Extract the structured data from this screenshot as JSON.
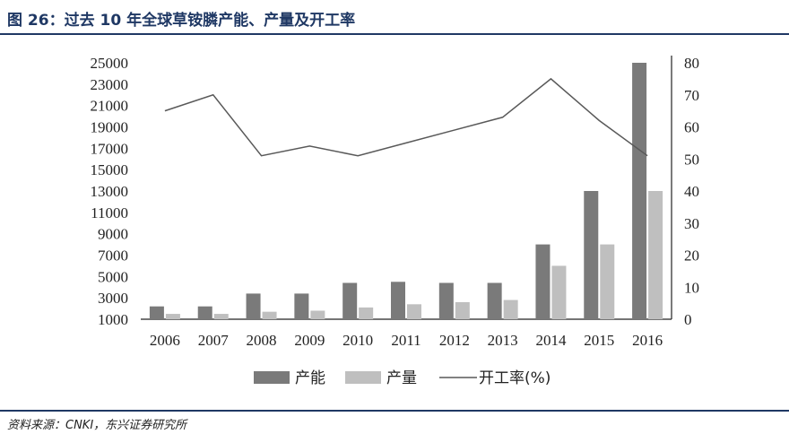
{
  "title": "图 26：过去 10 年全球草铵膦产能、产量及开工率",
  "source": "资料来源：CNKI，东兴证券研究所",
  "colors": {
    "accent": "#1f3864",
    "capacity_bar": "#7a7a7a",
    "output_bar": "#bfbfbf",
    "rate_line": "#595959"
  },
  "chart_data": {
    "type": "bar",
    "categories": [
      "2006",
      "2007",
      "2008",
      "2009",
      "2010",
      "2011",
      "2012",
      "2013",
      "2014",
      "2015",
      "2016"
    ],
    "series": [
      {
        "name": "产能",
        "type": "bar",
        "axis": "left",
        "values": [
          2200,
          2200,
          3400,
          3400,
          4400,
          4500,
          4400,
          4400,
          8000,
          13000,
          25000
        ]
      },
      {
        "name": "产量",
        "type": "bar",
        "axis": "left",
        "values": [
          1500,
          1500,
          1700,
          1800,
          2100,
          2400,
          2600,
          2800,
          6000,
          8000,
          13000
        ]
      },
      {
        "name": "开工率(%)",
        "type": "line",
        "axis": "right",
        "values": [
          65,
          70,
          51,
          54,
          51,
          55,
          59,
          63,
          75,
          62,
          51
        ]
      }
    ],
    "y_left": {
      "min": 1000,
      "max": 25000,
      "ticks": [
        "25000",
        "23000",
        "21000",
        "19000",
        "17000",
        "15000",
        "13000",
        "11000",
        "9000",
        "7000",
        "5000",
        "3000",
        "1000"
      ]
    },
    "y_right": {
      "min": 0,
      "max": 80,
      "ticks": [
        "80",
        "70",
        "60",
        "50",
        "40",
        "30",
        "20",
        "10",
        "0"
      ]
    },
    "legend_position": "bottom",
    "grid": false
  }
}
